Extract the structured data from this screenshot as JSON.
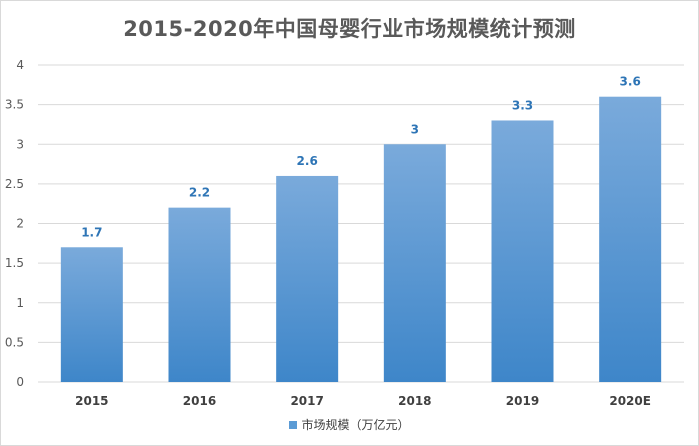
{
  "chart_data": {
    "type": "bar",
    "title": "2015-2020年中国母婴行业市场规模统计预测",
    "categories": [
      "2015",
      "2016",
      "2017",
      "2018",
      "2019",
      "2020E"
    ],
    "series": [
      {
        "name": "市场规模（万亿元）",
        "values": [
          1.7,
          2.2,
          2.6,
          3,
          3.3,
          3.6
        ],
        "data_labels": [
          "1.7",
          "2.2",
          "2.6",
          "3",
          "3.3",
          "3.6"
        ]
      }
    ],
    "y_ticks": [
      "0",
      "0.5",
      "1",
      "1.5",
      "2",
      "2.5",
      "3",
      "3.5",
      "4"
    ],
    "ylim": [
      0,
      4
    ],
    "grid": true,
    "legend_position": "bottom",
    "colors": {
      "bar_top": "#7aaadb",
      "bar_bottom": "#3e86c9",
      "data_label": "#2e75b6",
      "gridline": "#d9d9d9"
    }
  }
}
